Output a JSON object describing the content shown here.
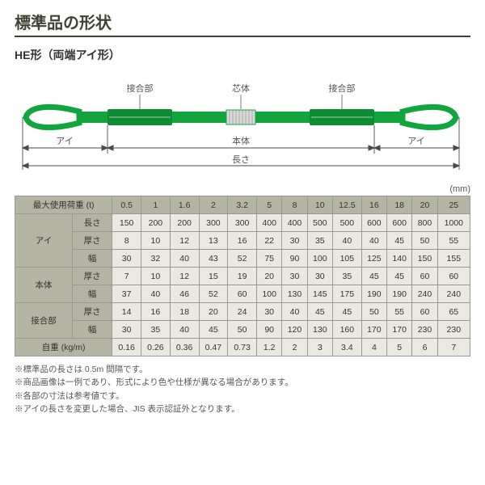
{
  "title": "標準品の形状",
  "subtitle": "HE形（両端アイ形）",
  "diagram": {
    "joint_label": "接合部",
    "core_label": "芯体",
    "eye_label": "アイ",
    "body_label": "本体",
    "length_label": "長さ",
    "strap_color": "#13a53d",
    "core_color": "#d0d0d0",
    "line_color": "#4a4a4a"
  },
  "unit_label": "(mm)",
  "table": {
    "col_headers": [
      "最大使用荷重 (t)",
      "0.5",
      "1",
      "1.6",
      "2",
      "3.2",
      "5",
      "8",
      "10",
      "12.5",
      "16",
      "18",
      "20",
      "25"
    ],
    "row_groups": [
      {
        "name": "アイ",
        "rows": [
          {
            "label": "長さ",
            "cells": [
              "150",
              "200",
              "200",
              "300",
              "300",
              "400",
              "400",
              "500",
              "500",
              "600",
              "600",
              "800",
              "1000"
            ]
          },
          {
            "label": "厚さ",
            "cells": [
              "8",
              "10",
              "12",
              "13",
              "16",
              "22",
              "30",
              "35",
              "40",
              "40",
              "45",
              "50",
              "55"
            ]
          },
          {
            "label": "幅",
            "cells": [
              "30",
              "32",
              "40",
              "43",
              "52",
              "75",
              "90",
              "100",
              "105",
              "125",
              "140",
              "150",
              "155"
            ]
          }
        ]
      },
      {
        "name": "本体",
        "rows": [
          {
            "label": "厚さ",
            "cells": [
              "7",
              "10",
              "12",
              "15",
              "19",
              "20",
              "30",
              "30",
              "35",
              "45",
              "45",
              "60",
              "60"
            ]
          },
          {
            "label": "幅",
            "cells": [
              "37",
              "40",
              "46",
              "52",
              "60",
              "100",
              "130",
              "145",
              "175",
              "190",
              "190",
              "240",
              "240"
            ]
          }
        ]
      },
      {
        "name": "接合部",
        "rows": [
          {
            "label": "厚さ",
            "cells": [
              "14",
              "16",
              "18",
              "20",
              "24",
              "30",
              "40",
              "45",
              "45",
              "50",
              "55",
              "60",
              "65"
            ]
          },
          {
            "label": "幅",
            "cells": [
              "30",
              "35",
              "40",
              "45",
              "50",
              "90",
              "120",
              "130",
              "160",
              "170",
              "170",
              "230",
              "230"
            ]
          }
        ]
      }
    ],
    "weight_row": {
      "label": "自重 (kg/m)",
      "cells": [
        "0.16",
        "0.26",
        "0.36",
        "0.47",
        "0.73",
        "1.2",
        "2",
        "3",
        "3.4",
        "4",
        "5",
        "6",
        "7"
      ]
    }
  },
  "notes": [
    "※標準品の長さは 0.5m 間隔です。",
    "※商品画像は一例であり、形式により色や仕様が異なる場合があります。",
    "※各部の寸法は参考値です。",
    "※アイの長さを変更した場合、JIS 表示認証外となります。"
  ]
}
